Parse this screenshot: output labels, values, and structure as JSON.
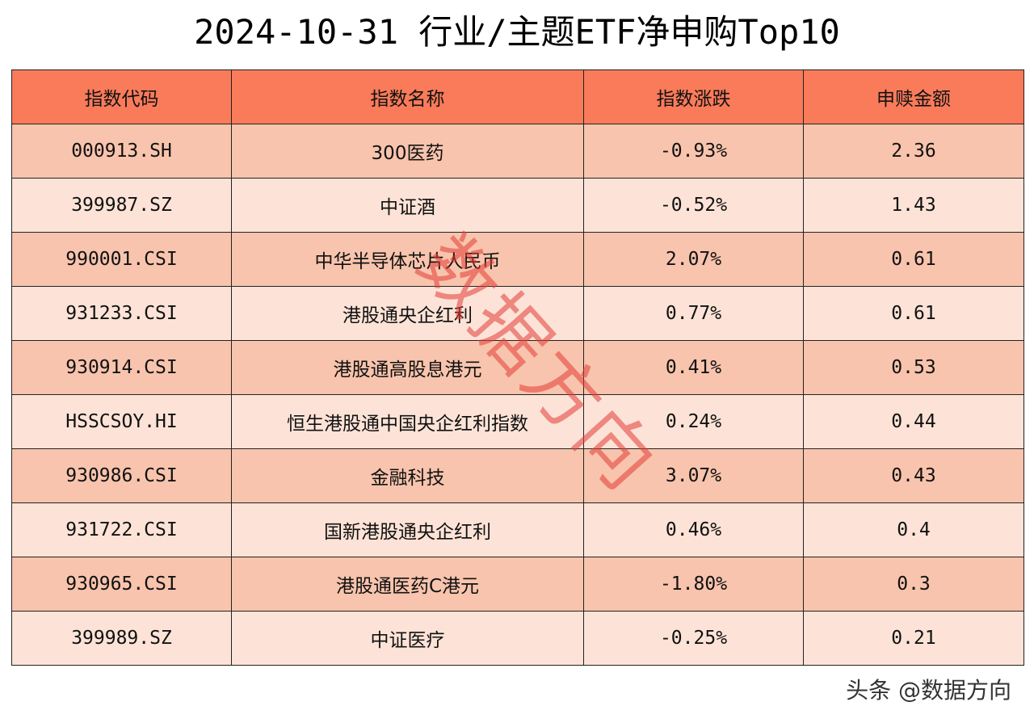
{
  "title": "2024-10-31 行业/主题ETF净申购Top10",
  "colors": {
    "header_bg": "#F97B5A",
    "row_odd_bg": "#F8C4AD",
    "row_even_bg": "#FDE3D7",
    "border": "#222222",
    "watermark": "#E13C37"
  },
  "watermark_text": "数据方向",
  "credit": "头条 @数据方向",
  "chart_data": {
    "type": "table",
    "columns": [
      "指数代码",
      "指数名称",
      "指数涨跌",
      "申赎金额"
    ],
    "rows": [
      [
        "000913.SH",
        "300医药",
        "-0.93%",
        "2.36"
      ],
      [
        "399987.SZ",
        "中证酒",
        "-0.52%",
        "1.43"
      ],
      [
        "990001.CSI",
        "中华半导体芯片人民币",
        "2.07%",
        "0.61"
      ],
      [
        "931233.CSI",
        "港股通央企红利",
        "0.77%",
        "0.61"
      ],
      [
        "930914.CSI",
        "港股通高股息港元",
        "0.41%",
        "0.53"
      ],
      [
        "HSSCSOY.HI",
        "恒生港股通中国央企红利指数",
        "0.24%",
        "0.44"
      ],
      [
        "930986.CSI",
        "金融科技",
        "3.07%",
        "0.43"
      ],
      [
        "931722.CSI",
        "国新港股通央企红利",
        "0.46%",
        "0.4"
      ],
      [
        "930965.CSI",
        "港股通医药C港元",
        "-1.80%",
        "0.3"
      ],
      [
        "399989.SZ",
        "中证医疗",
        "-0.25%",
        "0.21"
      ]
    ]
  }
}
